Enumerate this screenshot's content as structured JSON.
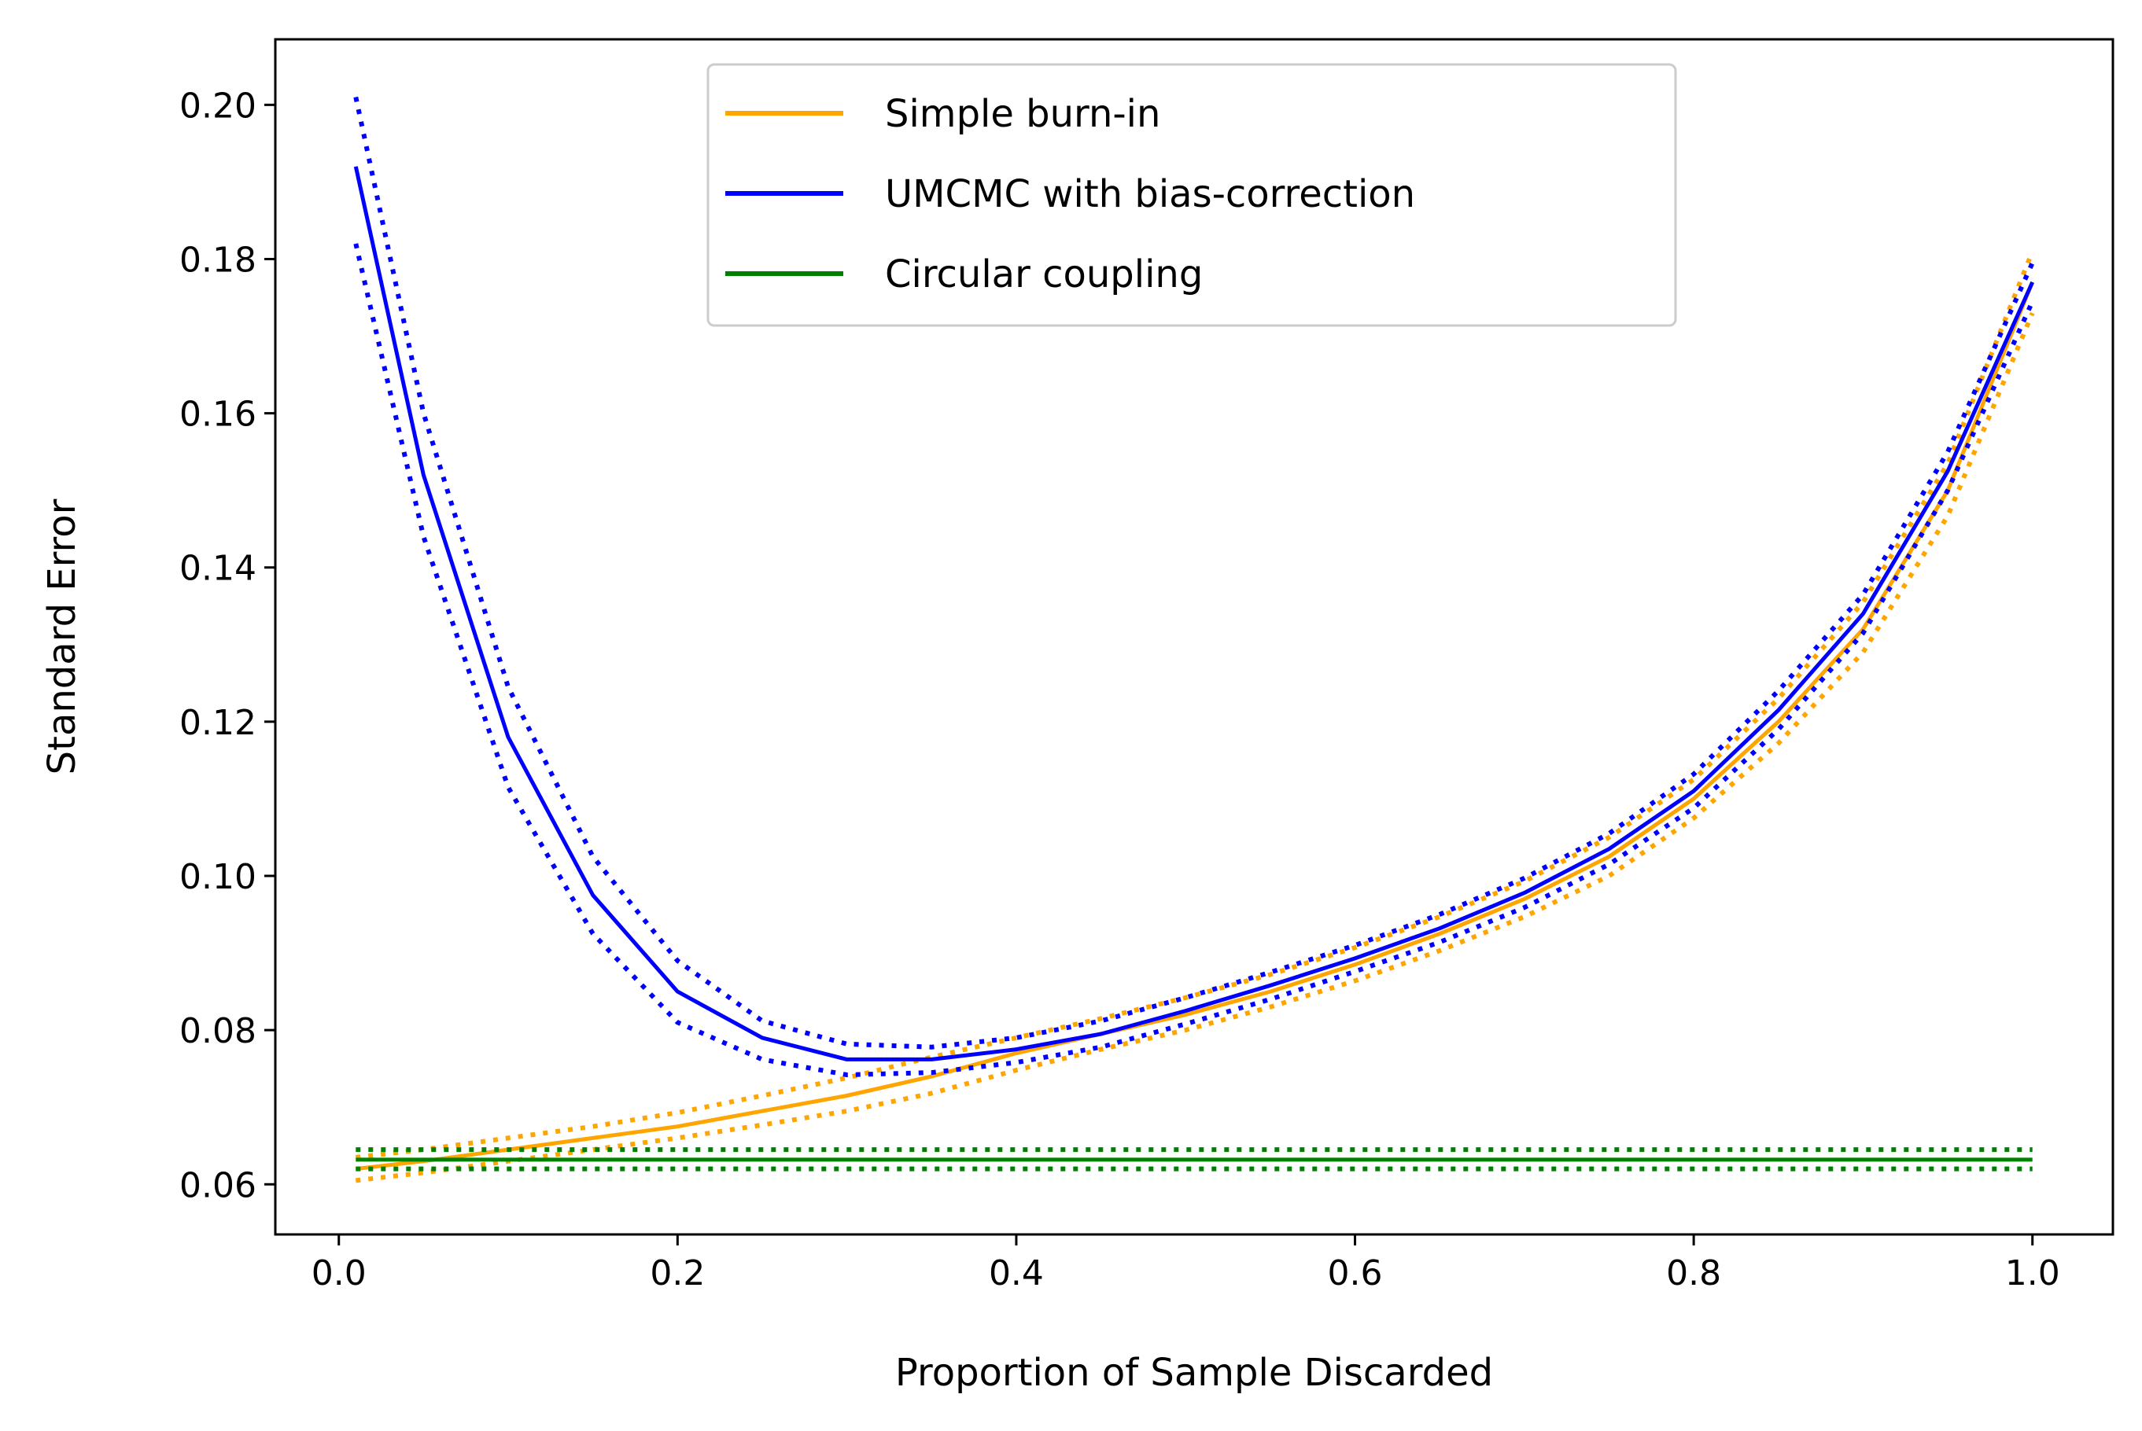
{
  "chart_data": {
    "type": "line",
    "title": "",
    "xlabel": "Proportion of Sample Discarded",
    "ylabel": "Standard Error",
    "xlim": [
      -0.0375,
      1.0475
    ],
    "ylim": [
      0.0535,
      0.2085
    ],
    "xticks": [
      "0.0",
      "0.2",
      "0.4",
      "0.6",
      "0.8",
      "1.0"
    ],
    "yticks": [
      "0.06",
      "0.08",
      "0.10",
      "0.12",
      "0.14",
      "0.16",
      "0.18",
      "0.20"
    ],
    "grid": false,
    "legend_position": "top-center",
    "colors": {
      "Simple burn-in": "#FFA500",
      "UMCMC with bias-correction": "#0000FF",
      "Circular coupling": "#008000"
    },
    "series": [
      {
        "name": "Simple burn-in",
        "style": "solid",
        "x": [
          0.01,
          0.05,
          0.1,
          0.15,
          0.2,
          0.25,
          0.3,
          0.35,
          0.4,
          0.45,
          0.5,
          0.55,
          0.6,
          0.65,
          0.7,
          0.75,
          0.8,
          0.85,
          0.9,
          0.95,
          1.0
        ],
        "y": [
          0.062,
          0.063,
          0.0645,
          0.066,
          0.0675,
          0.0695,
          0.0715,
          0.074,
          0.077,
          0.0795,
          0.082,
          0.085,
          0.0885,
          0.0925,
          0.097,
          0.1025,
          0.11,
          0.12,
          0.132,
          0.15,
          0.177
        ]
      },
      {
        "name": "Simple burn-in upper",
        "style": "dotted",
        "x": [
          0.01,
          0.05,
          0.1,
          0.15,
          0.2,
          0.25,
          0.3,
          0.35,
          0.4,
          0.45,
          0.5,
          0.55,
          0.6,
          0.65,
          0.7,
          0.75,
          0.8,
          0.85,
          0.9,
          0.95,
          1.0
        ],
        "y": [
          0.0635,
          0.0645,
          0.066,
          0.0675,
          0.0693,
          0.0715,
          0.0738,
          0.0765,
          0.079,
          0.0815,
          0.0842,
          0.0872,
          0.0907,
          0.0947,
          0.0993,
          0.105,
          0.1125,
          0.123,
          0.1355,
          0.1535,
          0.181
        ]
      },
      {
        "name": "Simple burn-in lower",
        "style": "dotted",
        "x": [
          0.01,
          0.05,
          0.1,
          0.15,
          0.2,
          0.25,
          0.3,
          0.35,
          0.4,
          0.45,
          0.5,
          0.55,
          0.6,
          0.65,
          0.7,
          0.75,
          0.8,
          0.85,
          0.9,
          0.95,
          1.0
        ],
        "y": [
          0.0605,
          0.0615,
          0.063,
          0.0645,
          0.066,
          0.0677,
          0.0695,
          0.0718,
          0.0748,
          0.0775,
          0.08,
          0.083,
          0.0864,
          0.0903,
          0.0947,
          0.1,
          0.1075,
          0.1172,
          0.129,
          0.1467,
          0.173
        ]
      },
      {
        "name": "UMCMC with bias-correction",
        "style": "solid",
        "x": [
          0.01,
          0.05,
          0.1,
          0.15,
          0.2,
          0.25,
          0.3,
          0.35,
          0.4,
          0.45,
          0.5,
          0.55,
          0.6,
          0.65,
          0.7,
          0.75,
          0.8,
          0.85,
          0.9,
          0.95,
          1.0
        ],
        "y": [
          0.192,
          0.152,
          0.118,
          0.0975,
          0.085,
          0.079,
          0.0762,
          0.0762,
          0.0775,
          0.0795,
          0.0825,
          0.0858,
          0.0893,
          0.0932,
          0.0978,
          0.1035,
          0.111,
          0.1215,
          0.134,
          0.1525,
          0.177
        ]
      },
      {
        "name": "UMCMC with bias-correction upper",
        "style": "dotted",
        "x": [
          0.01,
          0.05,
          0.1,
          0.15,
          0.2,
          0.25,
          0.3,
          0.35,
          0.4,
          0.45,
          0.5,
          0.55,
          0.6,
          0.65,
          0.7,
          0.75,
          0.8,
          0.85,
          0.9,
          0.95,
          1.0
        ],
        "y": [
          0.201,
          0.16,
          0.1245,
          0.1025,
          0.089,
          0.0812,
          0.0782,
          0.0778,
          0.079,
          0.0812,
          0.0842,
          0.0875,
          0.091,
          0.095,
          0.0997,
          0.1055,
          0.1132,
          0.124,
          0.1365,
          0.155,
          0.1795
        ]
      },
      {
        "name": "UMCMC with bias-correction lower",
        "style": "dotted",
        "x": [
          0.01,
          0.05,
          0.1,
          0.15,
          0.2,
          0.25,
          0.3,
          0.35,
          0.4,
          0.45,
          0.5,
          0.55,
          0.6,
          0.65,
          0.7,
          0.75,
          0.8,
          0.85,
          0.9,
          0.95,
          1.0
        ],
        "y": [
          0.182,
          0.144,
          0.1115,
          0.0925,
          0.081,
          0.0762,
          0.0742,
          0.0745,
          0.0758,
          0.0778,
          0.0808,
          0.084,
          0.0876,
          0.0914,
          0.0959,
          0.1015,
          0.1088,
          0.119,
          0.1315,
          0.15,
          0.1745
        ]
      },
      {
        "name": "Circular coupling",
        "style": "solid",
        "x": [
          0.01,
          1.0
        ],
        "y": [
          0.0632,
          0.0632
        ]
      },
      {
        "name": "Circular coupling upper",
        "style": "dotted",
        "x": [
          0.01,
          1.0
        ],
        "y": [
          0.0645,
          0.0645
        ]
      },
      {
        "name": "Circular coupling lower",
        "style": "dotted",
        "x": [
          0.01,
          1.0
        ],
        "y": [
          0.062,
          0.062
        ]
      }
    ],
    "legend": [
      "Simple burn-in",
      "UMCMC with bias-correction",
      "Circular coupling"
    ]
  }
}
